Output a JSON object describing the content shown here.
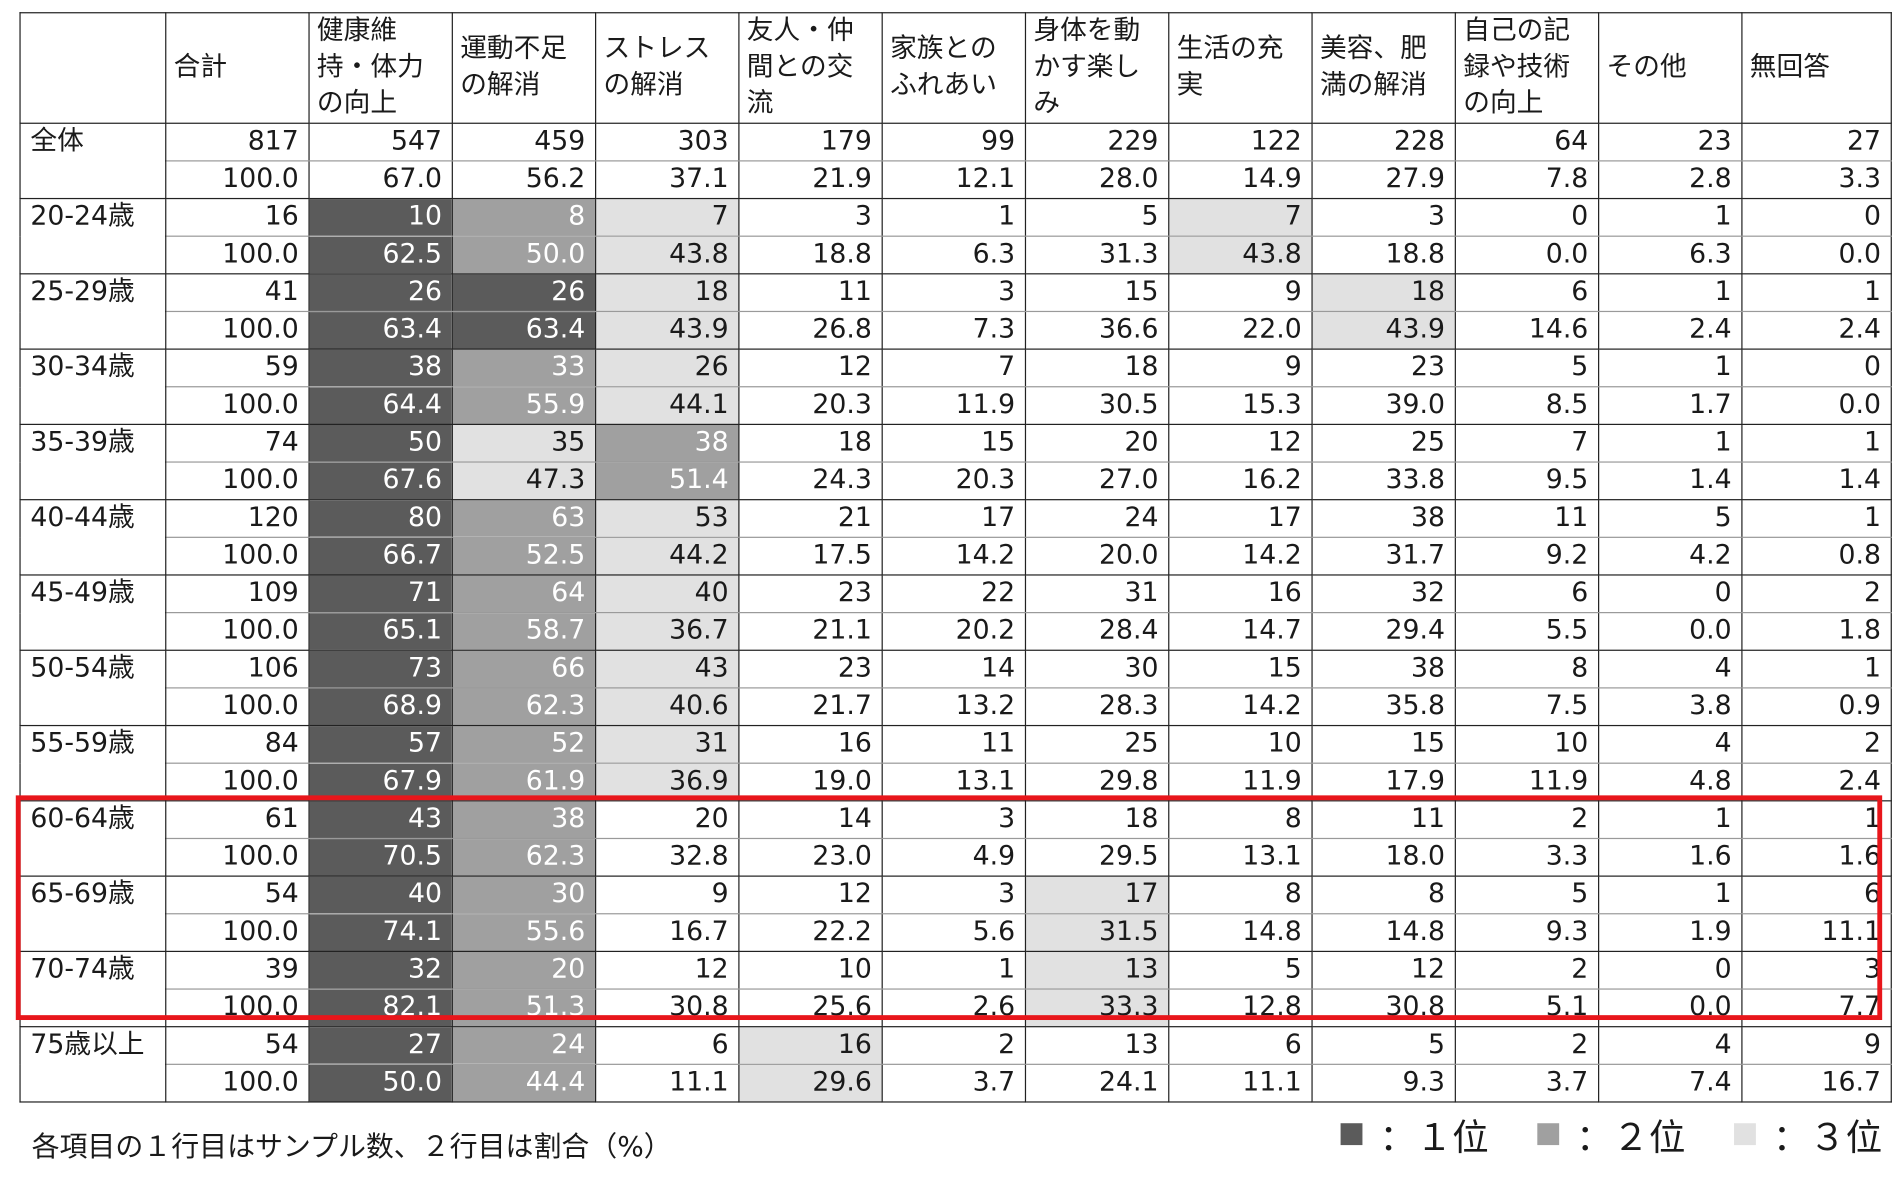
{
  "table": {
    "headers": [
      "",
      "合計",
      "健康維持・体力の向上",
      "運動不足の解消",
      "ストレスの解消",
      "友人・仲間との交流",
      "家族とのふれあい",
      "身体を動かす楽しみ",
      "生活の充実",
      "美容、肥満の解消",
      "自己の記録や技術の向上",
      "その他",
      "無回答"
    ],
    "rows": [
      {
        "label": "全体",
        "counts": [
          "817",
          "547",
          "459",
          "303",
          "179",
          "99",
          "229",
          "122",
          "228",
          "64",
          "23",
          "27"
        ],
        "pcts": [
          "100.0",
          "67.0",
          "56.2",
          "37.1",
          "21.9",
          "12.1",
          "28.0",
          "14.9",
          "27.9",
          "7.8",
          "2.8",
          "3.3"
        ],
        "ranks": [
          0,
          0,
          0,
          0,
          0,
          0,
          0,
          0,
          0,
          0,
          0,
          0
        ]
      },
      {
        "label": "20-24歳",
        "counts": [
          "16",
          "10",
          "8",
          "7",
          "3",
          "1",
          "5",
          "7",
          "3",
          "0",
          "1",
          "0"
        ],
        "pcts": [
          "100.0",
          "62.5",
          "50.0",
          "43.8",
          "18.8",
          "6.3",
          "31.3",
          "43.8",
          "18.8",
          "0.0",
          "6.3",
          "0.0"
        ],
        "ranks": [
          0,
          1,
          2,
          3,
          0,
          0,
          0,
          3,
          0,
          0,
          0,
          0
        ]
      },
      {
        "label": "25-29歳",
        "counts": [
          "41",
          "26",
          "26",
          "18",
          "11",
          "3",
          "15",
          "9",
          "18",
          "6",
          "1",
          "1"
        ],
        "pcts": [
          "100.0",
          "63.4",
          "63.4",
          "43.9",
          "26.8",
          "7.3",
          "36.6",
          "22.0",
          "43.9",
          "14.6",
          "2.4",
          "2.4"
        ],
        "ranks": [
          0,
          1,
          1,
          3,
          0,
          0,
          0,
          0,
          3,
          0,
          0,
          0
        ]
      },
      {
        "label": "30-34歳",
        "counts": [
          "59",
          "38",
          "33",
          "26",
          "12",
          "7",
          "18",
          "9",
          "23",
          "5",
          "1",
          "0"
        ],
        "pcts": [
          "100.0",
          "64.4",
          "55.9",
          "44.1",
          "20.3",
          "11.9",
          "30.5",
          "15.3",
          "39.0",
          "8.5",
          "1.7",
          "0.0"
        ],
        "ranks": [
          0,
          1,
          2,
          3,
          0,
          0,
          0,
          0,
          0,
          0,
          0,
          0
        ]
      },
      {
        "label": "35-39歳",
        "counts": [
          "74",
          "50",
          "35",
          "38",
          "18",
          "15",
          "20",
          "12",
          "25",
          "7",
          "1",
          "1"
        ],
        "pcts": [
          "100.0",
          "67.6",
          "47.3",
          "51.4",
          "24.3",
          "20.3",
          "27.0",
          "16.2",
          "33.8",
          "9.5",
          "1.4",
          "1.4"
        ],
        "ranks": [
          0,
          1,
          3,
          2,
          0,
          0,
          0,
          0,
          0,
          0,
          0,
          0
        ]
      },
      {
        "label": "40-44歳",
        "counts": [
          "120",
          "80",
          "63",
          "53",
          "21",
          "17",
          "24",
          "17",
          "38",
          "11",
          "5",
          "1"
        ],
        "pcts": [
          "100.0",
          "66.7",
          "52.5",
          "44.2",
          "17.5",
          "14.2",
          "20.0",
          "14.2",
          "31.7",
          "9.2",
          "4.2",
          "0.8"
        ],
        "ranks": [
          0,
          1,
          2,
          3,
          0,
          0,
          0,
          0,
          0,
          0,
          0,
          0
        ]
      },
      {
        "label": "45-49歳",
        "counts": [
          "109",
          "71",
          "64",
          "40",
          "23",
          "22",
          "31",
          "16",
          "32",
          "6",
          "0",
          "2"
        ],
        "pcts": [
          "100.0",
          "65.1",
          "58.7",
          "36.7",
          "21.1",
          "20.2",
          "28.4",
          "14.7",
          "29.4",
          "5.5",
          "0.0",
          "1.8"
        ],
        "ranks": [
          0,
          1,
          2,
          3,
          0,
          0,
          0,
          0,
          0,
          0,
          0,
          0
        ]
      },
      {
        "label": "50-54歳",
        "counts": [
          "106",
          "73",
          "66",
          "43",
          "23",
          "14",
          "30",
          "15",
          "38",
          "8",
          "4",
          "1"
        ],
        "pcts": [
          "100.0",
          "68.9",
          "62.3",
          "40.6",
          "21.7",
          "13.2",
          "28.3",
          "14.2",
          "35.8",
          "7.5",
          "3.8",
          "0.9"
        ],
        "ranks": [
          0,
          1,
          2,
          3,
          0,
          0,
          0,
          0,
          0,
          0,
          0,
          0
        ]
      },
      {
        "label": "55-59歳",
        "counts": [
          "84",
          "57",
          "52",
          "31",
          "16",
          "11",
          "25",
          "10",
          "15",
          "10",
          "4",
          "2"
        ],
        "pcts": [
          "100.0",
          "67.9",
          "61.9",
          "36.9",
          "19.0",
          "13.1",
          "29.8",
          "11.9",
          "17.9",
          "11.9",
          "4.8",
          "2.4"
        ],
        "ranks": [
          0,
          1,
          2,
          3,
          0,
          0,
          0,
          0,
          0,
          0,
          0,
          0
        ]
      },
      {
        "label": "60-64歳",
        "counts": [
          "61",
          "43",
          "38",
          "20",
          "14",
          "3",
          "18",
          "8",
          "11",
          "2",
          "1",
          "1"
        ],
        "pcts": [
          "100.0",
          "70.5",
          "62.3",
          "32.8",
          "23.0",
          "4.9",
          "29.5",
          "13.1",
          "18.0",
          "3.3",
          "1.6",
          "1.6"
        ],
        "ranks": [
          0,
          1,
          2,
          0,
          0,
          0,
          0,
          0,
          0,
          0,
          0,
          0
        ]
      },
      {
        "label": "65-69歳",
        "counts": [
          "54",
          "40",
          "30",
          "9",
          "12",
          "3",
          "17",
          "8",
          "8",
          "5",
          "1",
          "6"
        ],
        "pcts": [
          "100.0",
          "74.1",
          "55.6",
          "16.7",
          "22.2",
          "5.6",
          "31.5",
          "14.8",
          "14.8",
          "9.3",
          "1.9",
          "11.1"
        ],
        "ranks": [
          0,
          1,
          2,
          0,
          0,
          0,
          3,
          0,
          0,
          0,
          0,
          0
        ]
      },
      {
        "label": "70-74歳",
        "counts": [
          "39",
          "32",
          "20",
          "12",
          "10",
          "1",
          "13",
          "5",
          "12",
          "2",
          "0",
          "3"
        ],
        "pcts": [
          "100.0",
          "82.1",
          "51.3",
          "30.8",
          "25.6",
          "2.6",
          "33.3",
          "12.8",
          "30.8",
          "5.1",
          "0.0",
          "7.7"
        ],
        "ranks": [
          0,
          1,
          2,
          0,
          0,
          0,
          3,
          0,
          0,
          0,
          0,
          0
        ]
      },
      {
        "label": "75歳以上",
        "counts": [
          "54",
          "27",
          "24",
          "6",
          "16",
          "2",
          "13",
          "6",
          "5",
          "2",
          "4",
          "9"
        ],
        "pcts": [
          "100.0",
          "50.0",
          "44.4",
          "11.1",
          "29.6",
          "3.7",
          "24.1",
          "11.1",
          "9.3",
          "3.7",
          "7.4",
          "16.7"
        ],
        "ranks": [
          0,
          1,
          2,
          0,
          3,
          0,
          0,
          0,
          0,
          0,
          0,
          0
        ]
      }
    ]
  },
  "note": "各項目の１行目はサンプル数、２行目は割合（%）",
  "legend": [
    {
      "label": "：１位",
      "color": "#5b5b5b"
    },
    {
      "label": "：２位",
      "color": "#a0a0a0"
    },
    {
      "label": "：３位",
      "color": "#e1e1e1"
    }
  ],
  "highlight_color": "#e8161b"
}
